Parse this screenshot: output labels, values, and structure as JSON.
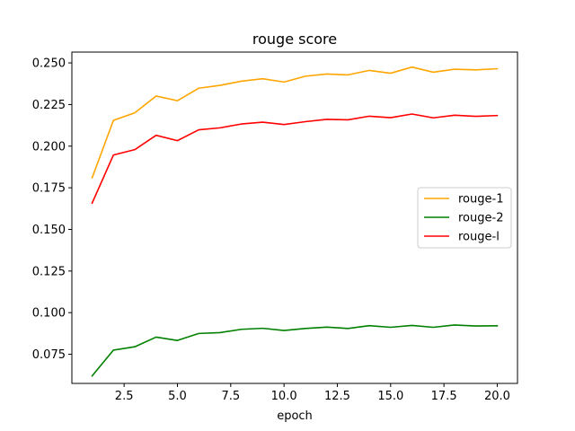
{
  "chart_data": {
    "type": "line",
    "title": "rouge score",
    "xlabel": "epoch",
    "ylabel": "",
    "xlim": [
      0.05,
      20.95
    ],
    "ylim": [
      0.0575,
      0.2565
    ],
    "xticks": [
      2.5,
      5.0,
      7.5,
      10.0,
      12.5,
      15.0,
      17.5,
      20.0
    ],
    "xtick_labels": [
      "2.5",
      "5.0",
      "7.5",
      "10.0",
      "12.5",
      "15.0",
      "17.5",
      "20.0"
    ],
    "yticks": [
      0.075,
      0.1,
      0.125,
      0.15,
      0.175,
      0.2,
      0.225,
      0.25
    ],
    "ytick_labels": [
      "0.075",
      "0.100",
      "0.125",
      "0.150",
      "0.175",
      "0.200",
      "0.225",
      "0.250"
    ],
    "grid": false,
    "legend_position": "center-right",
    "x": [
      1,
      2,
      3,
      4,
      5,
      6,
      7,
      8,
      9,
      10,
      11,
      12,
      13,
      14,
      15,
      16,
      17,
      18,
      19,
      20
    ],
    "series": [
      {
        "name": "rouge-1",
        "color": "#ffa500",
        "values": [
          0.181,
          0.2155,
          0.22,
          0.2301,
          0.2273,
          0.2348,
          0.2365,
          0.239,
          0.2405,
          0.2385,
          0.242,
          0.2433,
          0.2428,
          0.2455,
          0.2438,
          0.2475,
          0.2444,
          0.2462,
          0.2458,
          0.2465
        ]
      },
      {
        "name": "rouge-2",
        "color": "#008000",
        "values": [
          0.062,
          0.0775,
          0.0795,
          0.0853,
          0.0833,
          0.0875,
          0.088,
          0.09,
          0.0906,
          0.0893,
          0.0905,
          0.0913,
          0.0905,
          0.0922,
          0.0912,
          0.0923,
          0.0912,
          0.0926,
          0.092,
          0.0921
        ]
      },
      {
        "name": "rouge-l",
        "color": "#ff0000",
        "values": [
          0.1658,
          0.1947,
          0.1979,
          0.2065,
          0.2033,
          0.2098,
          0.211,
          0.2133,
          0.2144,
          0.213,
          0.2147,
          0.2161,
          0.2158,
          0.218,
          0.2171,
          0.2193,
          0.217,
          0.2186,
          0.2179,
          0.2184
        ]
      }
    ]
  }
}
